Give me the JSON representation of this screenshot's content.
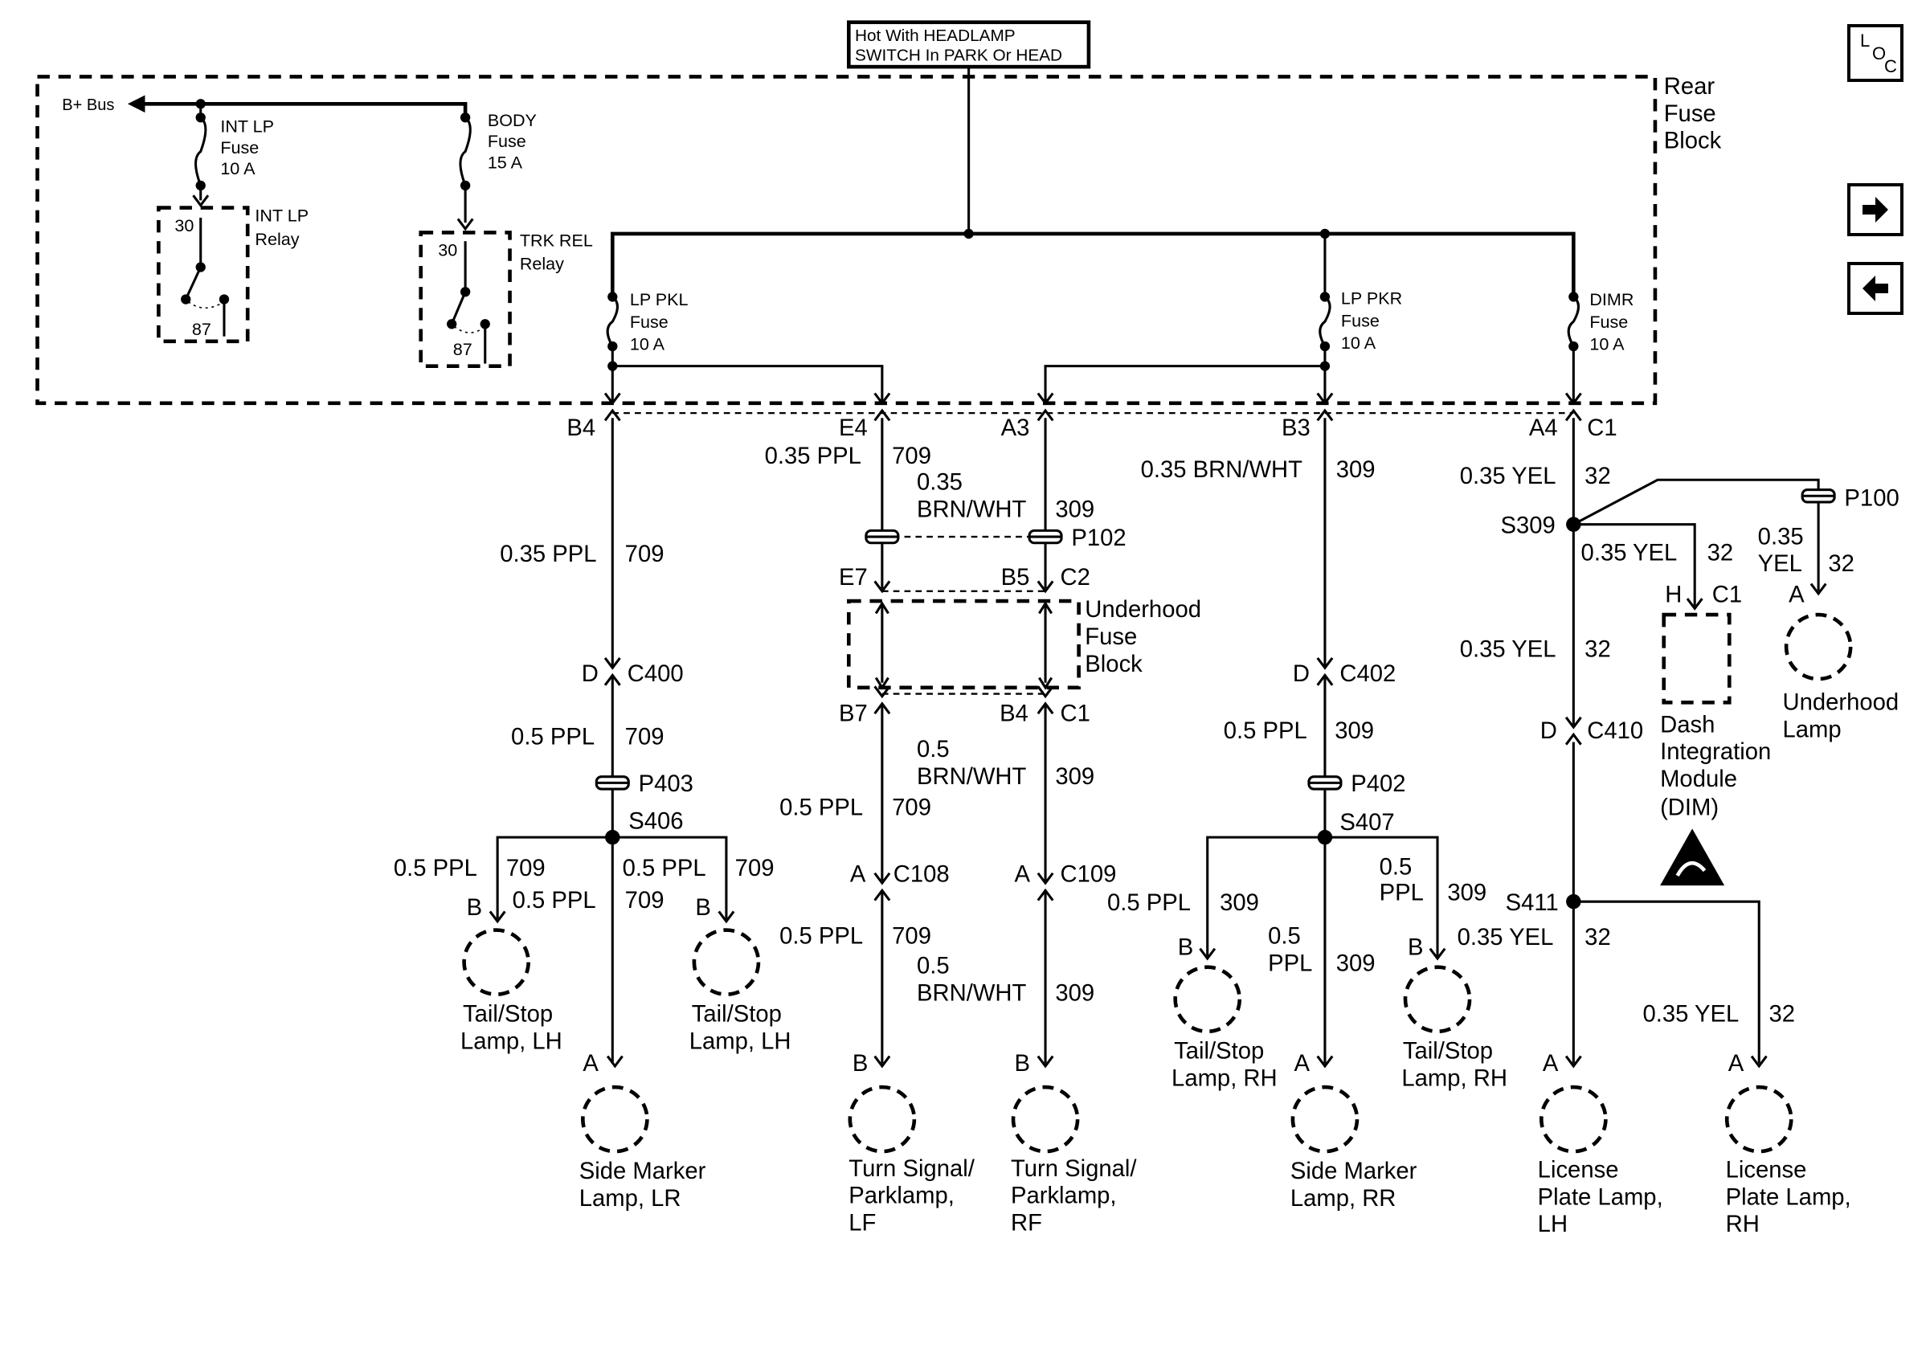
{
  "title_box": {
    "line1": "Hot With HEADLAMP",
    "line2": "SWITCH In PARK Or HEAD"
  },
  "nav": {
    "loc_letters": [
      "L",
      "O",
      "C"
    ],
    "next_icon": "right-arrow-icon",
    "prev_icon": "left-arrow-icon"
  },
  "labels": {
    "rear1": "Rear",
    "rear2": "Fuse",
    "rear3": "Block",
    "bplus": "B+ Bus",
    "intlp_f1": "INT LP",
    "intlp_f2": "Fuse",
    "intlp_f3": "10 A",
    "body_f1": "BODY",
    "body_f2": "Fuse",
    "body_f3": "15 A",
    "intlp_r1": "INT LP",
    "intlp_r2": "Relay",
    "intlp_30": "30",
    "intlp_87": "87",
    "trk_r1": "TRK REL",
    "trk_r2": "Relay",
    "trk_30": "30",
    "trk_87": "87",
    "pkl1": "LP PKL",
    "pkl2": "Fuse",
    "pkl3": "10 A",
    "pkr1": "LP PKR",
    "pkr2": "Fuse",
    "pkr3": "10 A",
    "dimr1": "DIMR",
    "dimr2": "Fuse",
    "dimr3": "10 A",
    "c_b4": "B4",
    "c_e4": "E4",
    "c_a3": "A3",
    "c_b3": "B3",
    "c_a4": "A4",
    "c_c1": "C1",
    "w1_a": "0.35 PPL",
    "w1_b": "709",
    "d_c400a": "D",
    "d_c400b": "C400",
    "w1_c": "0.5 PPL",
    "w1_d": "709",
    "p403": "P403",
    "s406": "S406",
    "w1_e": "0.5 PPL",
    "w1_f": "709",
    "w1_g": "0.5 PPL",
    "w1_h": "709",
    "w1_i": "0.5 PPL",
    "w1_j": "709",
    "b_lh1": "B",
    "b_lh2": "B",
    "a_lr": "A",
    "lamp_ts_lh1a": "Tail/Stop",
    "lamp_ts_lh1b": "Lamp, LH",
    "lamp_ts_lh2a": "Tail/Stop",
    "lamp_ts_lh2b": "Lamp, LH",
    "lamp_sm_lra": "Side Marker",
    "lamp_sm_lrb": "Lamp, LR",
    "w2_a": "0.35 PPL",
    "w2_b": "709",
    "w3_a": "0.35",
    "w3_b": "BRN/WHT",
    "w3_c": "309",
    "p102": "P102",
    "c_e7": "E7",
    "c_b5": "B5",
    "c_c2": "C2",
    "uh1": "Underhood",
    "uh2": "Fuse",
    "uh3": "Block",
    "c_b7": "B7",
    "c_b4b": "B4",
    "c_c1b": "C1",
    "w3_d": "0.5",
    "w3_e": "BRN/WHT",
    "w3_f": "309",
    "w2_c": "0.5 PPL",
    "w2_d": "709",
    "a_c108": "A",
    "c108": "C108",
    "a_c109": "A",
    "c109": "C109",
    "w2_e": "0.5 PPL",
    "w2_f": "709",
    "w3_g": "0.5",
    "w3_h": "BRN/WHT",
    "w3_i": "309",
    "b_lf": "B",
    "b_rf": "B",
    "lamp_lf1": "Turn Signal/",
    "lamp_lf2": "Parklamp,",
    "lamp_lf3": "LF",
    "lamp_rf1": "Turn Signal/",
    "lamp_rf2": "Parklamp,",
    "lamp_rf3": "RF",
    "w4_a": "0.35 BRN/WHT",
    "w4_b": "309",
    "d_c402a": "D",
    "d_c402b": "C402",
    "w4_c": "0.5 PPL",
    "w4_d": "309",
    "p402": "P402",
    "s407": "S407",
    "w4_e": "0.5 PPL",
    "w4_f": "309",
    "w4_g": "0.5",
    "w4_h": "PPL",
    "w4_i": "309",
    "w4_j": "0.5",
    "w4_k": "PPL",
    "w4_l": "309",
    "b_rh1": "B",
    "b_rh2": "B",
    "a_rr": "A",
    "lamp_ts_rh1a": "Tail/Stop",
    "lamp_ts_rh1b": "Lamp, RH",
    "lamp_ts_rh2a": "Tail/Stop",
    "lamp_ts_rh2b": "Lamp, RH",
    "lamp_sm_rra": "Side Marker",
    "lamp_sm_rrb": "Lamp, RR",
    "w5_a": "0.35 YEL",
    "w5_b": "32",
    "s309": "S309",
    "p100": "P100",
    "w5_c": "0.35 YEL",
    "w5_d": "32",
    "w5_e": "0.35",
    "w5_f": "YEL",
    "w5_g": "32",
    "h_c1a": "H",
    "h_c1b": "C1",
    "a_uhl": "A",
    "dim1": "Dash",
    "dim2": "Integration",
    "dim3": "Module",
    "dim4": "(DIM)",
    "uhl1": "Underhood",
    "uhl2": "Lamp",
    "w5_h": "0.35 YEL",
    "w5_i": "32",
    "d_c410a": "D",
    "d_c410b": "C410",
    "s411": "S411",
    "w5_j": "0.35 YEL",
    "w5_k": "32",
    "w5_l": "0.35 YEL",
    "w5_m": "32",
    "a_lpl": "A",
    "a_lpr": "A",
    "lpl1": "License",
    "lpl2": "Plate Lamp,",
    "lpl3": "LH",
    "lpr1": "License",
    "lpr2": "Plate Lamp,",
    "lpr3": "RH"
  }
}
